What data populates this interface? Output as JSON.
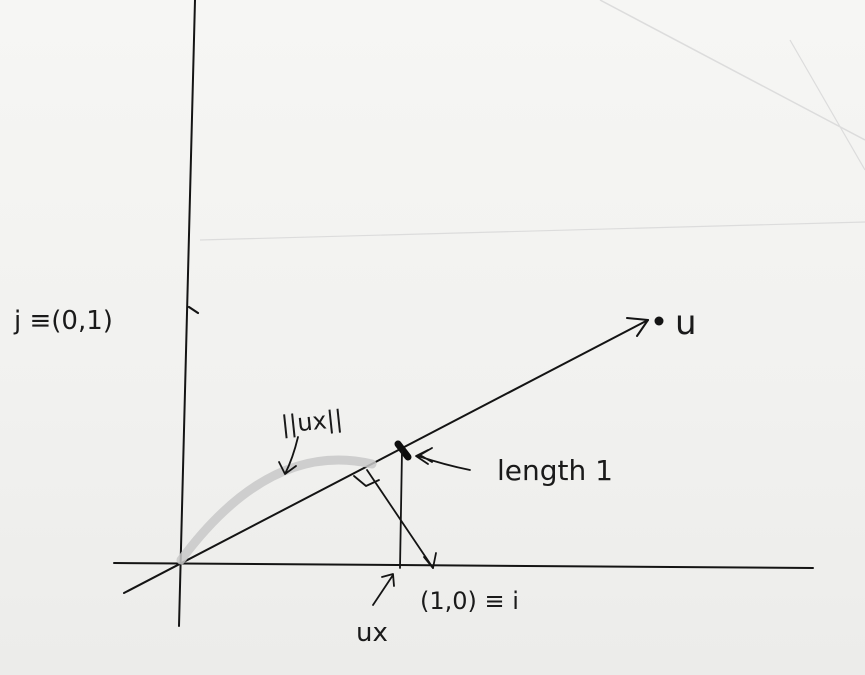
{
  "labels": {
    "j_axis": "j ≡(0,1)",
    "u_point": "u",
    "norm_ux": "||ux||",
    "length_note": "length 1",
    "i_axis": "(1,0) ≡ i",
    "ux_label": "ux"
  },
  "ink_color": "#141414",
  "highlight_color": "#c8c8c8"
}
